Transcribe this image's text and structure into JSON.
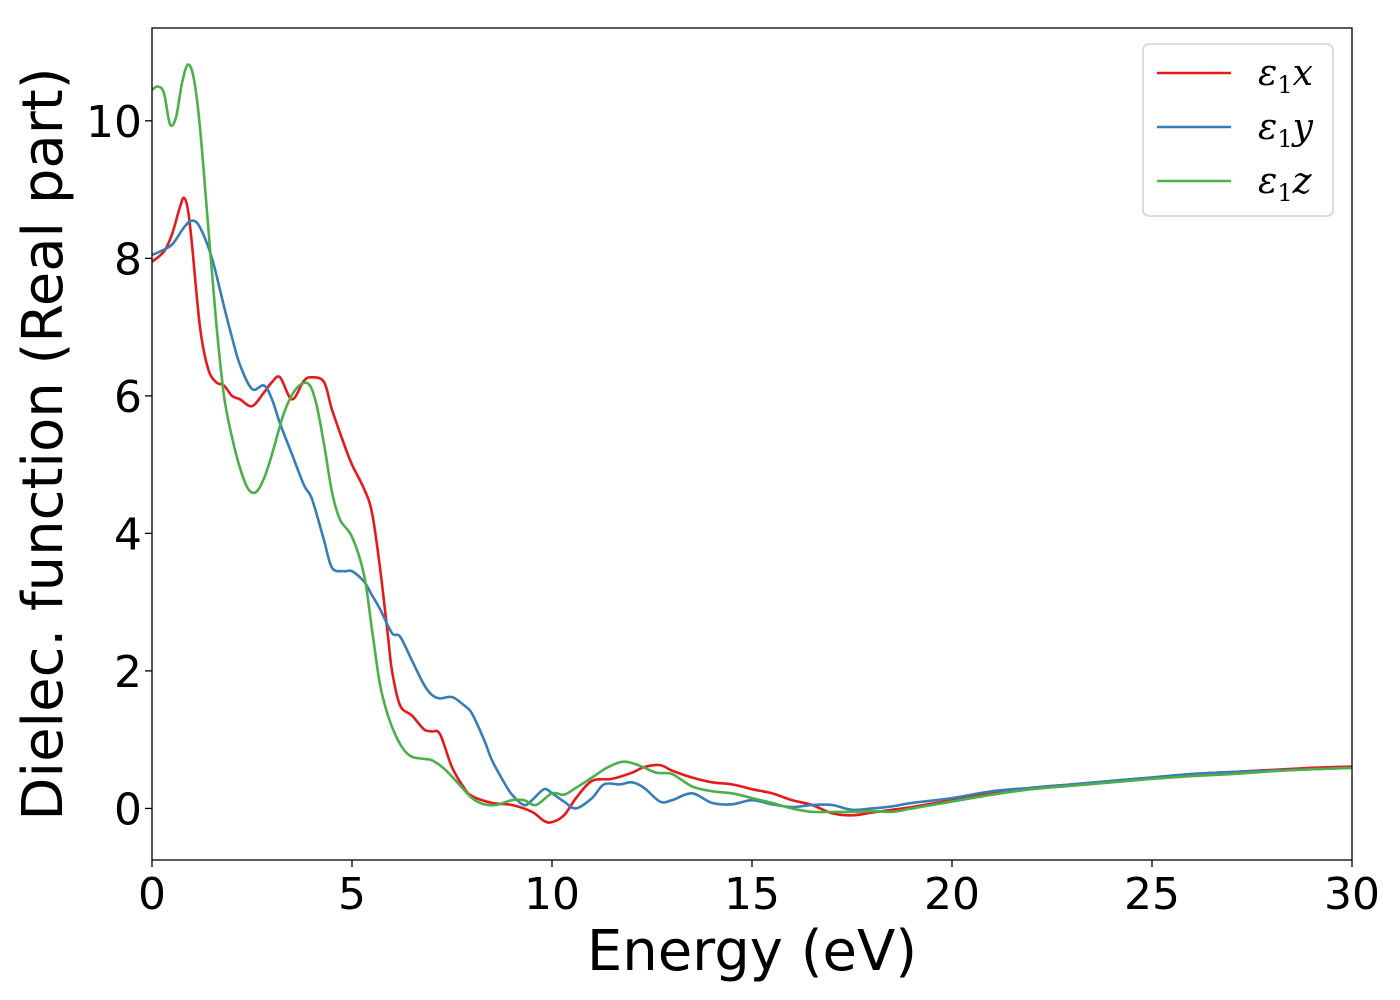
{
  "chart_data": {
    "type": "line",
    "xlabel": "Energy (eV)",
    "ylabel": "Dielec. function (Real part)",
    "xlim": [
      0,
      30
    ],
    "ylim": [
      -0.75,
      11.35
    ],
    "xticks": [
      0,
      5,
      10,
      15,
      20,
      25,
      30
    ],
    "xtick_labels": [
      "0",
      "5",
      "10",
      "15",
      "20",
      "25",
      "30"
    ],
    "yticks": [
      0,
      2,
      4,
      6,
      8,
      10
    ],
    "ytick_labels": [
      "0",
      "2",
      "4",
      "6",
      "8",
      "10"
    ],
    "grid": false,
    "legend_position": "top-right",
    "series": [
      {
        "name": "ε1x",
        "legend_base": "ε",
        "legend_sub": "1",
        "legend_comp": "x",
        "color": "#e41a1c",
        "x": [
          0,
          0.3,
          0.5,
          0.7,
          0.8,
          0.9,
          1.0,
          1.2,
          1.4,
          1.6,
          1.8,
          2.0,
          2.2,
          2.5,
          2.8,
          3.0,
          3.2,
          3.5,
          3.8,
          4.0,
          4.3,
          4.5,
          4.8,
          5.0,
          5.3,
          5.5,
          5.7,
          5.9,
          6.0,
          6.2,
          6.5,
          6.8,
          7.0,
          7.2,
          7.5,
          7.8,
          8.0,
          8.5,
          9.0,
          9.5,
          9.8,
          10.0,
          10.3,
          10.6,
          11.0,
          11.5,
          12.0,
          12.3,
          12.7,
          13.0,
          13.5,
          14.0,
          14.5,
          15.0,
          15.5,
          16.0,
          16.5,
          17.0,
          17.5,
          18.0,
          18.5,
          19.0,
          20.0,
          21.0,
          22.0,
          23.0,
          24.0,
          25.0,
          26.0,
          27.0,
          28.0,
          29.0,
          30.0
        ],
        "y": [
          7.95,
          8.1,
          8.35,
          8.75,
          8.88,
          8.7,
          8.2,
          7.0,
          6.4,
          6.2,
          6.15,
          6.0,
          5.95,
          5.85,
          6.05,
          6.2,
          6.27,
          5.95,
          6.22,
          6.27,
          6.2,
          5.8,
          5.3,
          5.0,
          4.65,
          4.3,
          3.5,
          2.5,
          2.0,
          1.5,
          1.35,
          1.15,
          1.12,
          1.08,
          0.6,
          0.3,
          0.18,
          0.08,
          0.05,
          -0.05,
          -0.18,
          -0.2,
          -0.1,
          0.15,
          0.4,
          0.43,
          0.52,
          0.6,
          0.63,
          0.55,
          0.45,
          0.38,
          0.35,
          0.28,
          0.22,
          0.12,
          0.05,
          -0.07,
          -0.1,
          -0.06,
          -0.02,
          0.02,
          0.12,
          0.22,
          0.3,
          0.35,
          0.4,
          0.45,
          0.5,
          0.53,
          0.56,
          0.59,
          0.61
        ]
      },
      {
        "name": "ε1y",
        "legend_base": "ε",
        "legend_sub": "1",
        "legend_comp": "y",
        "color": "#377eb8",
        "x": [
          0,
          0.2,
          0.5,
          0.8,
          1.0,
          1.2,
          1.5,
          1.8,
          2.0,
          2.2,
          2.5,
          2.8,
          3.0,
          3.2,
          3.5,
          3.8,
          4.0,
          4.3,
          4.5,
          4.8,
          5.0,
          5.3,
          5.5,
          5.7,
          6.0,
          6.2,
          6.5,
          6.8,
          7.0,
          7.2,
          7.5,
          7.8,
          8.0,
          8.3,
          8.5,
          8.8,
          9.0,
          9.3,
          9.5,
          9.8,
          10.0,
          10.3,
          10.6,
          11.0,
          11.3,
          11.7,
          12.0,
          12.3,
          12.7,
          13.0,
          13.5,
          14.0,
          14.5,
          15.0,
          15.5,
          16.0,
          16.5,
          17.0,
          17.5,
          18.0,
          18.5,
          19.0,
          20.0,
          21.0,
          22.0,
          23.0,
          24.0,
          25.0,
          26.0,
          27.0,
          28.0,
          29.0,
          30.0
        ],
        "y": [
          8.05,
          8.1,
          8.2,
          8.45,
          8.55,
          8.45,
          8.0,
          7.3,
          6.85,
          6.45,
          6.1,
          6.15,
          5.95,
          5.6,
          5.15,
          4.7,
          4.5,
          3.9,
          3.5,
          3.45,
          3.45,
          3.3,
          3.1,
          2.9,
          2.55,
          2.5,
          2.15,
          1.8,
          1.65,
          1.6,
          1.62,
          1.5,
          1.38,
          1.0,
          0.7,
          0.38,
          0.2,
          0.05,
          0.12,
          0.28,
          0.22,
          0.1,
          0.0,
          0.15,
          0.35,
          0.35,
          0.38,
          0.3,
          0.1,
          0.12,
          0.22,
          0.08,
          0.06,
          0.12,
          0.06,
          0.02,
          0.05,
          0.05,
          -0.02,
          0.0,
          0.03,
          0.08,
          0.15,
          0.25,
          0.3,
          0.35,
          0.4,
          0.45,
          0.5,
          0.53,
          0.55,
          0.57,
          0.59
        ]
      },
      {
        "name": "ε1z",
        "legend_base": "ε",
        "legend_sub": "1",
        "legend_comp": "z",
        "color": "#4daf4a",
        "x": [
          0,
          0.15,
          0.3,
          0.45,
          0.6,
          0.75,
          0.9,
          1.05,
          1.2,
          1.4,
          1.6,
          1.8,
          2.0,
          2.2,
          2.4,
          2.6,
          2.8,
          3.0,
          3.3,
          3.6,
          3.9,
          4.1,
          4.3,
          4.5,
          4.7,
          5.0,
          5.3,
          5.5,
          5.7,
          5.9,
          6.1,
          6.3,
          6.5,
          6.8,
          7.0,
          7.3,
          7.6,
          8.0,
          8.3,
          8.6,
          9.0,
          9.3,
          9.6,
          10.0,
          10.3,
          10.6,
          11.0,
          11.4,
          11.8,
          12.2,
          12.6,
          13.0,
          13.5,
          14.0,
          14.5,
          15.0,
          15.5,
          16.0,
          16.5,
          17.0,
          17.5,
          18.0,
          18.5,
          19.0,
          20.0,
          21.0,
          22.0,
          23.0,
          24.0,
          25.0,
          26.0,
          27.0,
          28.0,
          29.0,
          30.0
        ],
        "y": [
          10.45,
          10.5,
          10.4,
          9.95,
          10.05,
          10.55,
          10.82,
          10.6,
          9.9,
          8.5,
          7.1,
          6.0,
          5.4,
          4.95,
          4.65,
          4.6,
          4.8,
          5.15,
          5.75,
          6.1,
          6.18,
          5.9,
          5.3,
          4.6,
          4.2,
          3.95,
          3.4,
          2.6,
          1.8,
          1.35,
          1.05,
          0.85,
          0.75,
          0.72,
          0.7,
          0.58,
          0.4,
          0.15,
          0.06,
          0.05,
          0.12,
          0.12,
          0.05,
          0.22,
          0.2,
          0.3,
          0.45,
          0.6,
          0.68,
          0.62,
          0.52,
          0.5,
          0.32,
          0.25,
          0.22,
          0.15,
          0.08,
          0.0,
          -0.05,
          -0.05,
          -0.05,
          -0.04,
          -0.05,
          0.0,
          0.1,
          0.2,
          0.28,
          0.33,
          0.38,
          0.43,
          0.47,
          0.5,
          0.54,
          0.57,
          0.59
        ]
      }
    ]
  }
}
